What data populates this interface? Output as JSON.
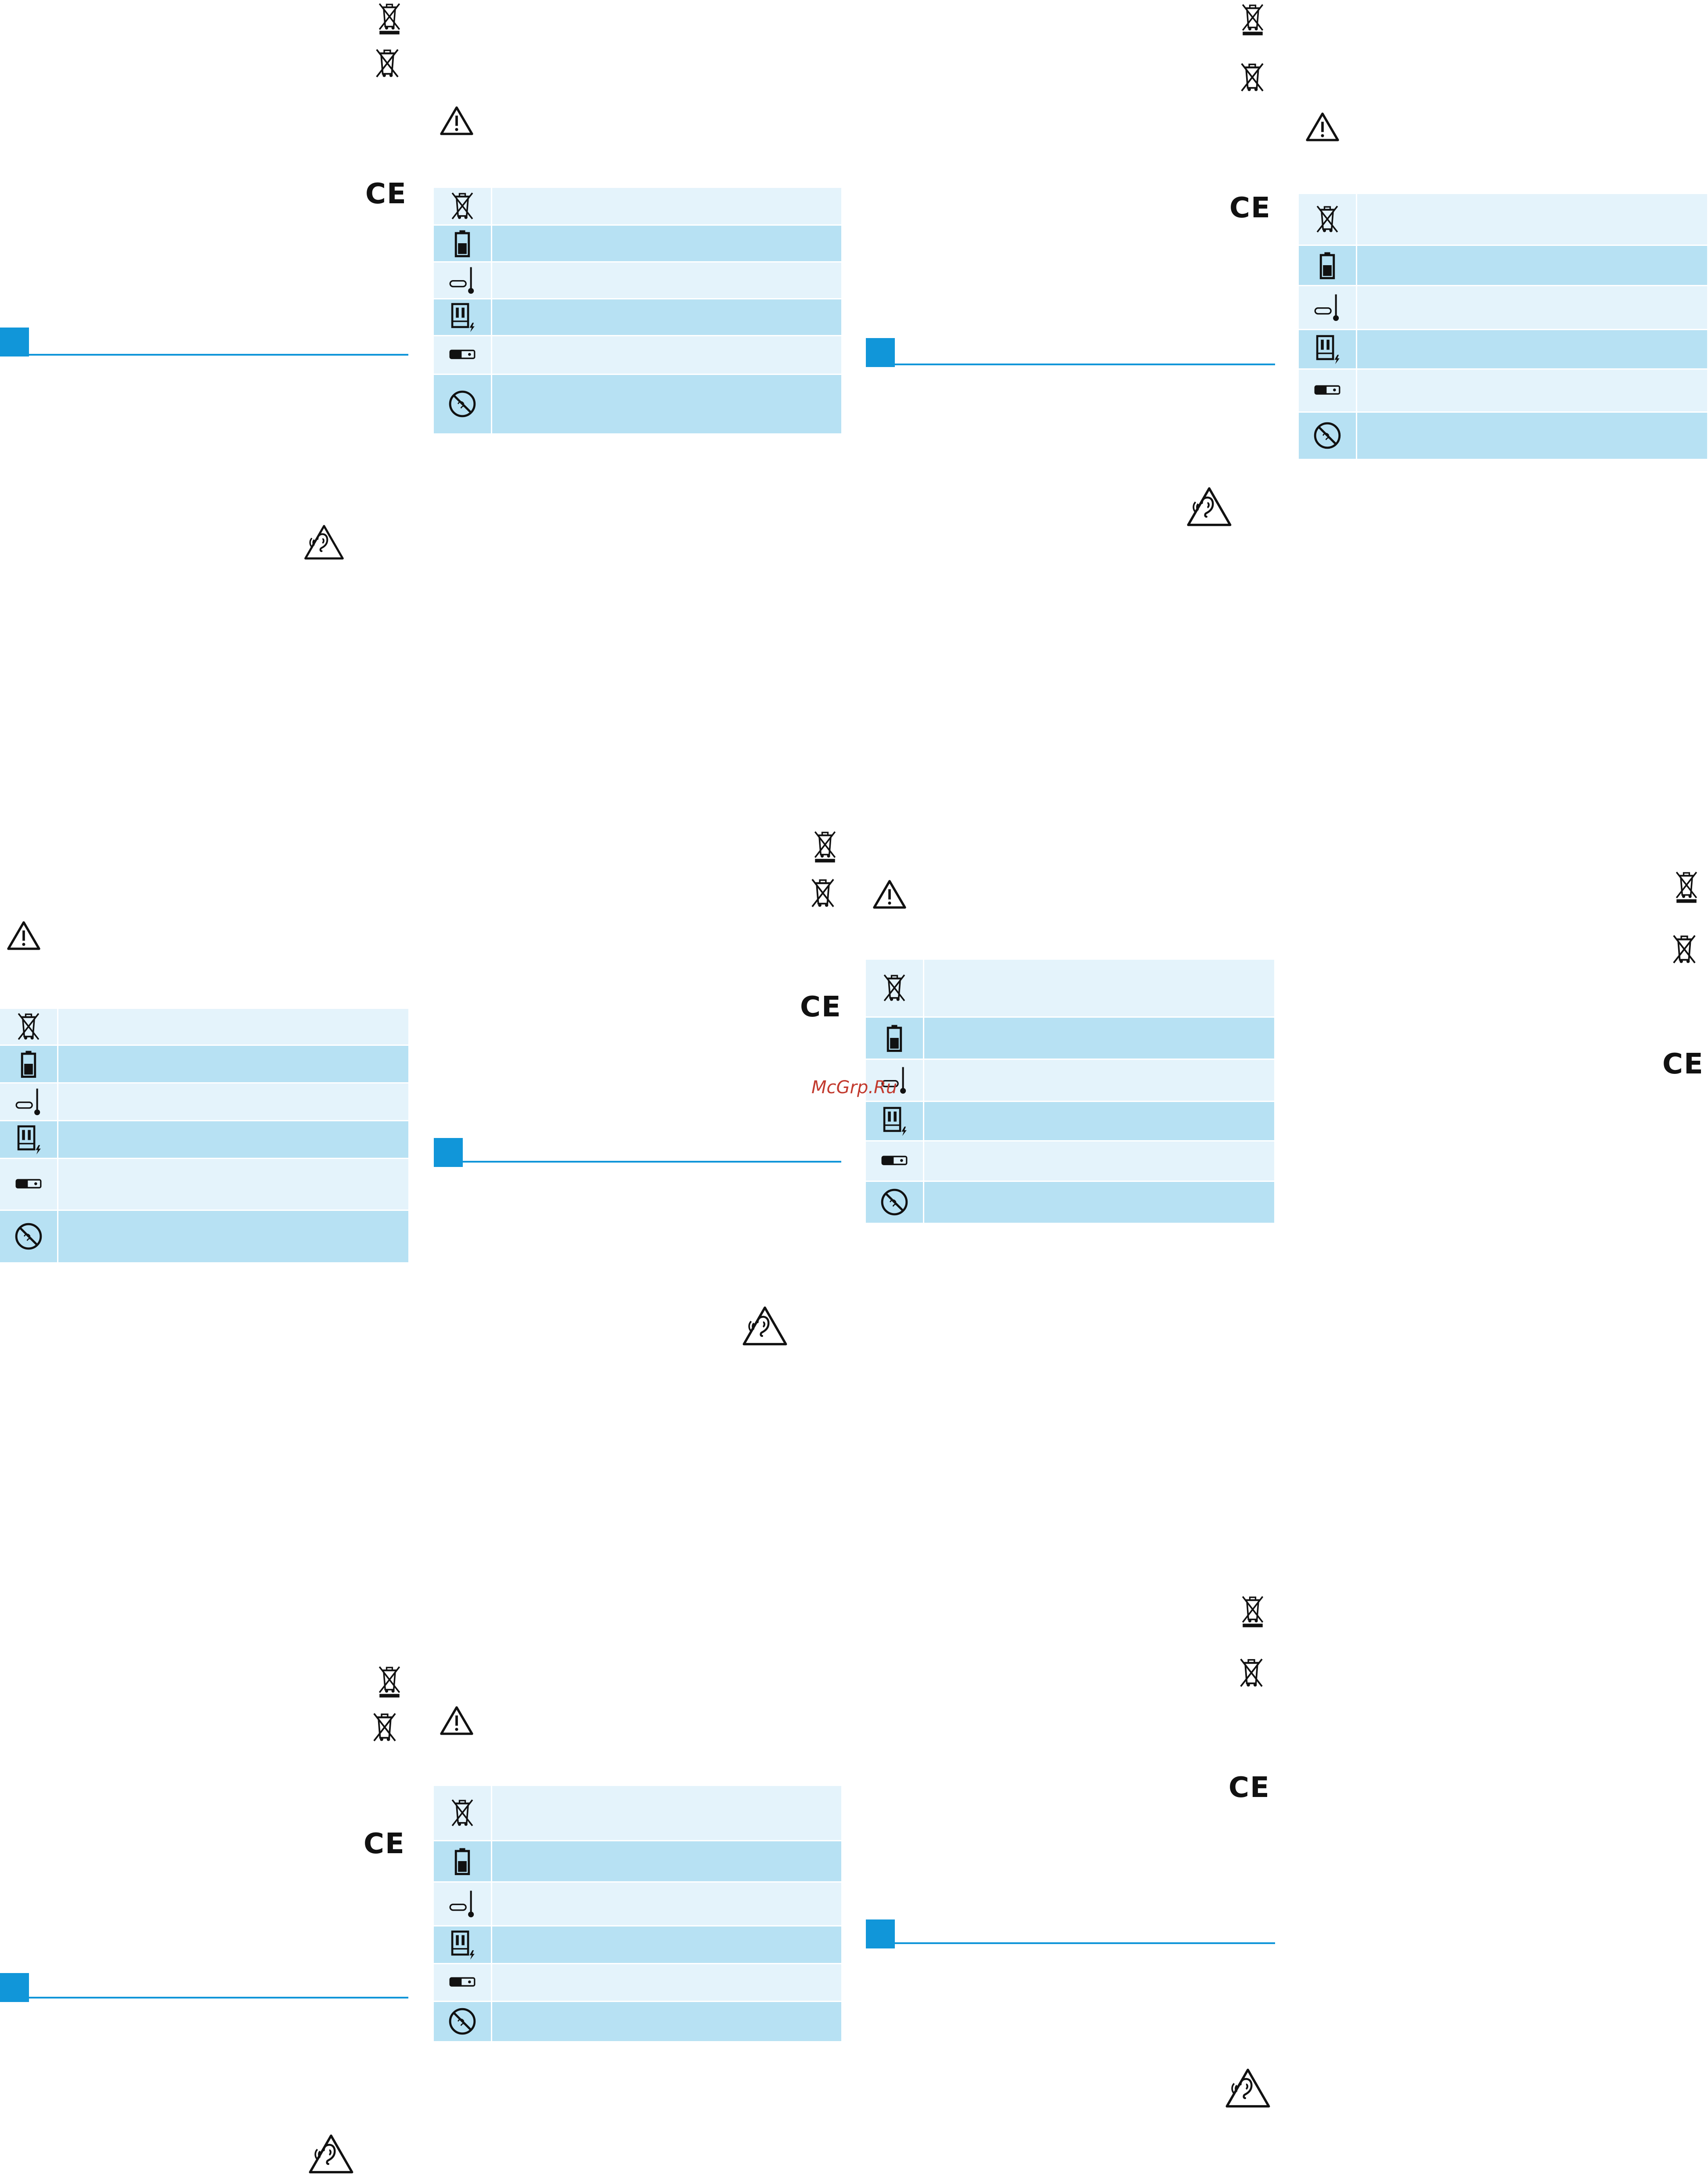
{
  "document": {
    "watermark": "McGrp.Ru",
    "ce_mark": "CE",
    "accent_color": "#1196d9",
    "table_light_color": "#e4f3fb",
    "table_dark_color": "#b7e1f3"
  },
  "symbol_table": {
    "rows": [
      {
        "icon": "crossed-bin-icon",
        "shade": "light"
      },
      {
        "icon": "battery-icon",
        "shade": "dark"
      },
      {
        "icon": "temperature-icon",
        "shade": "light"
      },
      {
        "icon": "charging-case-icon",
        "shade": "dark"
      },
      {
        "icon": "usb-connector-icon",
        "shade": "light"
      },
      {
        "icon": "no-water-icon",
        "shade": "dark"
      }
    ]
  },
  "icons": {
    "weee_bar": "crossed-bin-with-bar-icon",
    "weee": "crossed-bin-icon",
    "warning": "warning-triangle-icon",
    "hearing": "hearing-protection-icon"
  }
}
